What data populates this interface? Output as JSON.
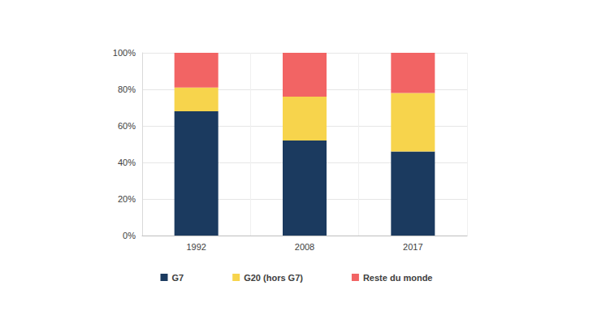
{
  "chart_data": {
    "type": "bar",
    "stacked": true,
    "categories": [
      "1992",
      "2008",
      "2017"
    ],
    "series": [
      {
        "name": "G7",
        "color": "#1b3a5f",
        "values": [
          68,
          52,
          46
        ]
      },
      {
        "name": "G20 (hors G7)",
        "color": "#f7d44c",
        "values": [
          13,
          24,
          32
        ]
      },
      {
        "name": "Reste du monde",
        "color": "#f26464",
        "values": [
          19,
          24,
          22
        ]
      }
    ],
    "ylim": [
      0,
      100
    ],
    "yticks": [
      {
        "value": 0,
        "label": "0%"
      },
      {
        "value": 20,
        "label": "20%"
      },
      {
        "value": 40,
        "label": "40%"
      },
      {
        "value": 60,
        "label": "60%"
      },
      {
        "value": 80,
        "label": "80%"
      },
      {
        "value": 100,
        "label": "100%"
      }
    ],
    "grid": true,
    "legend": "bottom"
  }
}
